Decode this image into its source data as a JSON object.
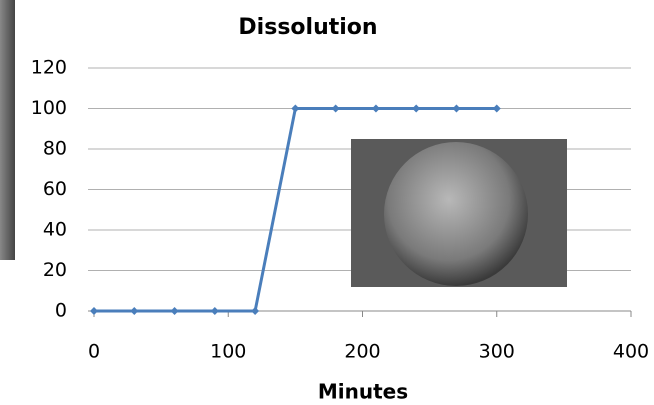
{
  "chart_data": {
    "type": "line",
    "title": "Dissolution",
    "x_label": "Minutes",
    "x": [
      0,
      30,
      60,
      90,
      120,
      150,
      180,
      210,
      240,
      270,
      300
    ],
    "series": [
      {
        "name": "Dissolution",
        "color": "#4a7ebb",
        "values": [
          0,
          0,
          0,
          0,
          0,
          100,
          100,
          100,
          100,
          100,
          100
        ]
      }
    ],
    "xlim": [
      0,
      400
    ],
    "xticks": [
      0,
      100,
      200,
      300,
      400
    ],
    "ylim": [
      0,
      120
    ],
    "yticks": [
      0,
      20,
      40,
      60,
      80,
      100,
      120
    ],
    "grid": true
  }
}
